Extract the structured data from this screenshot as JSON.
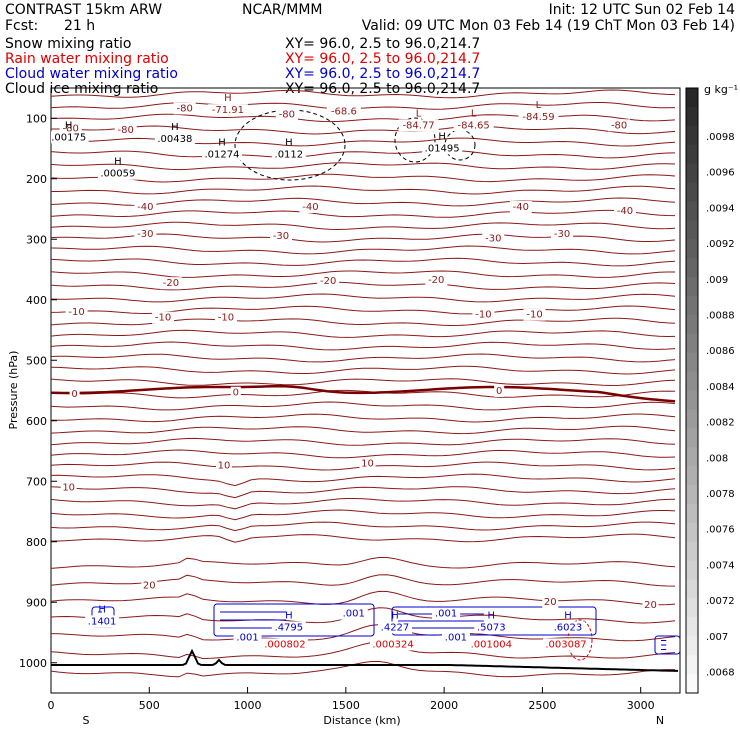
{
  "header": {
    "model": "CONTRAST 15km ARW",
    "center": "NCAR/MMM",
    "init": "Init: 12 UTC Sun 02 Feb 14",
    "fcst_label": "Fcst:",
    "fcst_value": "21 h",
    "valid": "Valid: 09 UTC Mon 03 Feb 14 (19 ChT Mon 03 Feb 14)",
    "xy": "XY=  96.0,  2.5 to  96.0,214.7"
  },
  "fields": [
    {
      "name": "Snow mixing ratio",
      "color": "#000000"
    },
    {
      "name": "Rain water mixing ratio",
      "color": "#dd0000"
    },
    {
      "name": "Cloud water mixing ratio",
      "color": "#0000cc"
    },
    {
      "name": "Cloud ice mixing ratio",
      "color": "#000000"
    }
  ],
  "colorbar": {
    "unit": "g kg⁻¹",
    "ticks": [
      ".0098",
      ".0096",
      ".0094",
      ".0092",
      ".009",
      ".0088",
      ".0086",
      ".0084",
      ".0082",
      ".008",
      ".0078",
      ".0076",
      ".0074",
      ".0072",
      ".007",
      ".0068"
    ]
  },
  "chart_data": {
    "type": "cross-section contour",
    "xlabel": "Distance (km)",
    "ylabel": "Pressure (hPa)",
    "xlim": [
      0,
      3200
    ],
    "ylim": [
      1050,
      50
    ],
    "xticks": [
      0,
      500,
      1000,
      1500,
      2000,
      2500,
      3000
    ],
    "yticks": [
      100,
      200,
      300,
      400,
      500,
      600,
      700,
      800,
      900,
      1000
    ],
    "endpoints": [
      "S",
      "N"
    ],
    "temperature_labels": [
      {
        "x": 100,
        "p": 115,
        "t": "-80"
      },
      {
        "x": 380,
        "p": 118,
        "t": "-80"
      },
      {
        "x": 680,
        "p": 82,
        "t": "-80"
      },
      {
        "x": 1200,
        "p": 92,
        "t": "-80"
      },
      {
        "x": 2890,
        "p": 110,
        "t": "-80"
      },
      {
        "x": 480,
        "p": 245,
        "t": "-40"
      },
      {
        "x": 1320,
        "p": 245,
        "t": "-40"
      },
      {
        "x": 2390,
        "p": 245,
        "t": "-40"
      },
      {
        "x": 2920,
        "p": 252,
        "t": "-40"
      },
      {
        "x": 480,
        "p": 290,
        "t": "-30"
      },
      {
        "x": 1170,
        "p": 293,
        "t": "-30"
      },
      {
        "x": 2250,
        "p": 297,
        "t": "-30"
      },
      {
        "x": 2600,
        "p": 290,
        "t": "-30"
      },
      {
        "x": 610,
        "p": 371,
        "t": "-20"
      },
      {
        "x": 1410,
        "p": 367,
        "t": "-20"
      },
      {
        "x": 1960,
        "p": 366,
        "t": "-20"
      },
      {
        "x": 130,
        "p": 419,
        "t": "-10"
      },
      {
        "x": 570,
        "p": 428,
        "t": "-10"
      },
      {
        "x": 890,
        "p": 428,
        "t": "-10"
      },
      {
        "x": 2200,
        "p": 423,
        "t": "-10"
      },
      {
        "x": 2460,
        "p": 423,
        "t": "-10"
      },
      {
        "x": 120,
        "p": 554,
        "t": "0"
      },
      {
        "x": 940,
        "p": 552,
        "t": "0"
      },
      {
        "x": 2280,
        "p": 549,
        "t": "0"
      },
      {
        "x": 880,
        "p": 672,
        "t": "10"
      },
      {
        "x": 90,
        "p": 709,
        "t": "10"
      },
      {
        "x": 1610,
        "p": 669,
        "t": "10"
      },
      {
        "x": 500,
        "p": 871,
        "t": "20"
      },
      {
        "x": 2540,
        "p": 898,
        "t": "20"
      },
      {
        "x": 3050,
        "p": 903,
        "t": "20"
      }
    ],
    "extrema_labels": [
      {
        "kind": "H",
        "value": "-71.91",
        "x": 900,
        "p": 85
      },
      {
        "kind": "",
        "value": "-68.6",
        "x": 1490,
        "p": 87
      },
      {
        "kind": "L",
        "value": "-84.77",
        "x": 1870,
        "p": 110
      },
      {
        "kind": "L",
        "value": "-84.65",
        "x": 2150,
        "p": 110
      },
      {
        "kind": "L",
        "value": "-84.59",
        "x": 2480,
        "p": 96
      },
      {
        "kind": "H",
        "value": ".00175",
        "x": 90,
        "p": 130
      },
      {
        "kind": "H",
        "value": ".00438",
        "x": 630,
        "p": 133
      },
      {
        "kind": "H",
        "value": ".01274",
        "x": 870,
        "p": 158
      },
      {
        "kind": "H",
        "value": ".0112",
        "x": 1210,
        "p": 158
      },
      {
        "kind": "H",
        "value": ".01495",
        "x": 1990,
        "p": 148
      },
      {
        "kind": "H",
        "value": ".00059",
        "x": 340,
        "p": 190
      },
      {
        "kind": "H",
        "value": ".1401",
        "x": 260,
        "p": 930
      },
      {
        "kind": "H",
        "value": ".4795",
        "x": 1210,
        "p": 940
      },
      {
        "kind": "H",
        "value": ".4227",
        "x": 1750,
        "p": 940
      },
      {
        "kind": "H",
        "value": ".5073",
        "x": 2240,
        "p": 940
      },
      {
        "kind": "H",
        "value": ".6023",
        "x": 2630,
        "p": 940
      }
    ],
    "rain_labels": [
      {
        "x": 1190,
        "p": 968,
        "v": ".000802"
      },
      {
        "x": 1740,
        "p": 968,
        "v": ".000324"
      },
      {
        "x": 2240,
        "p": 968,
        "v": ".001004"
      },
      {
        "x": 2620,
        "p": 968,
        "v": ".003087"
      }
    ],
    "cloud_labels": [
      {
        "x": 1540,
        "p": 917,
        "v": ".001"
      },
      {
        "x": 2010,
        "p": 917,
        "v": ".001"
      },
      {
        "x": 1000,
        "p": 957,
        "v": ".001"
      },
      {
        "x": 2060,
        "p": 957,
        "v": ".001"
      }
    ]
  }
}
